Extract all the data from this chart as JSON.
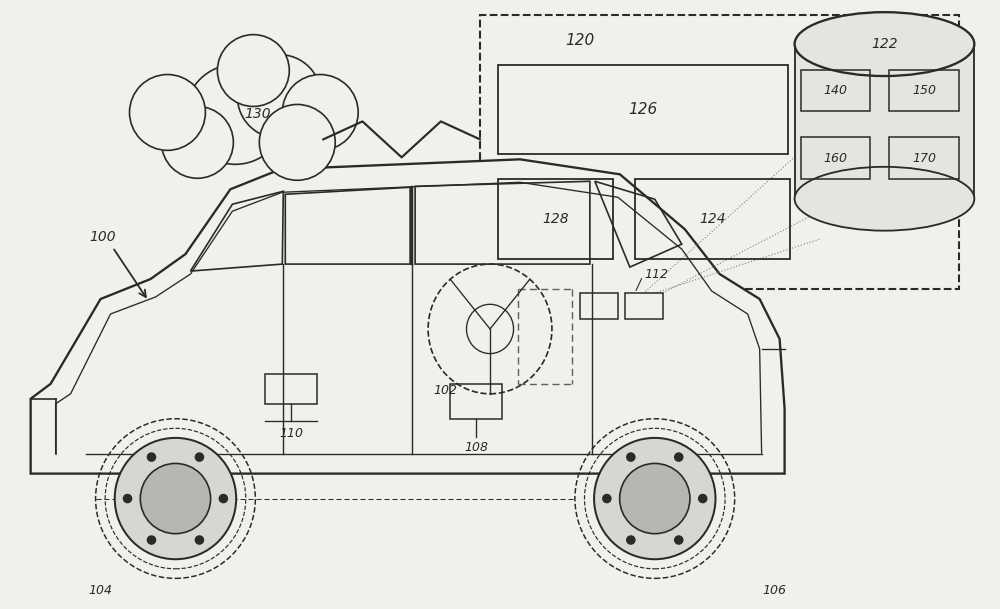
{
  "bg_color": "#f2f0ec",
  "line_color": "#2a2a2a",
  "fig_width": 10.0,
  "fig_height": 6.09
}
